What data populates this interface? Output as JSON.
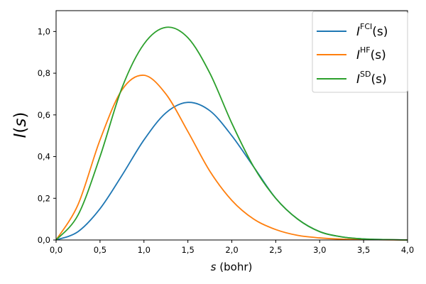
{
  "chart_data": {
    "type": "line",
    "title": "",
    "xlabel": {
      "var": "s",
      "unit": "(bohr)"
    },
    "ylabel": {
      "var": "I",
      "open": "(",
      "arg": "s",
      "close": ")"
    },
    "xlim": [
      0,
      4
    ],
    "ylim": [
      0,
      1.1
    ],
    "xticks": [
      0,
      0.5,
      1,
      1.5,
      2,
      2.5,
      3,
      3.5,
      4
    ],
    "xtick_labels": [
      "0,0",
      "0,5",
      "1,0",
      "1,5",
      "2,0",
      "2,5",
      "3,0",
      "3,5",
      "4,0"
    ],
    "yticks": [
      0,
      0.2,
      0.4,
      0.6,
      0.8,
      1.0
    ],
    "ytick_labels": [
      "0,0",
      "0,2",
      "0,4",
      "0,6",
      "0,8",
      "1,0"
    ],
    "grid": false,
    "legend_position": "top-right",
    "x": [
      0,
      0.25,
      0.5,
      0.75,
      1.0,
      1.25,
      1.5,
      1.75,
      2.0,
      2.25,
      2.5,
      2.75,
      3.0,
      3.25,
      3.5,
      3.75,
      4.0
    ],
    "series": [
      {
        "name": "FCI",
        "label_main": "I",
        "label_sup": "FCI",
        "label_arg": "(s)",
        "color": "#1f77b4",
        "values": [
          0.0,
          0.04,
          0.15,
          0.31,
          0.48,
          0.61,
          0.66,
          0.62,
          0.5,
          0.35,
          0.2,
          0.1,
          0.04,
          0.015,
          0.005,
          0.002,
          0.0
        ]
      },
      {
        "name": "HF",
        "label_main": "I",
        "label_sup": "HF",
        "label_arg": "(s)",
        "color": "#ff7f0e",
        "values": [
          0.0,
          0.17,
          0.48,
          0.72,
          0.79,
          0.7,
          0.52,
          0.33,
          0.19,
          0.1,
          0.05,
          0.022,
          0.01,
          0.004,
          0.002,
          0.001,
          0.0
        ]
      },
      {
        "name": "SD",
        "label_main": "I",
        "label_sup": "SD",
        "label_arg": "(s)",
        "color": "#2ca02c",
        "values": [
          0.0,
          0.12,
          0.4,
          0.73,
          0.94,
          1.02,
          0.97,
          0.8,
          0.56,
          0.35,
          0.2,
          0.1,
          0.04,
          0.015,
          0.005,
          0.002,
          0.0
        ]
      }
    ]
  }
}
